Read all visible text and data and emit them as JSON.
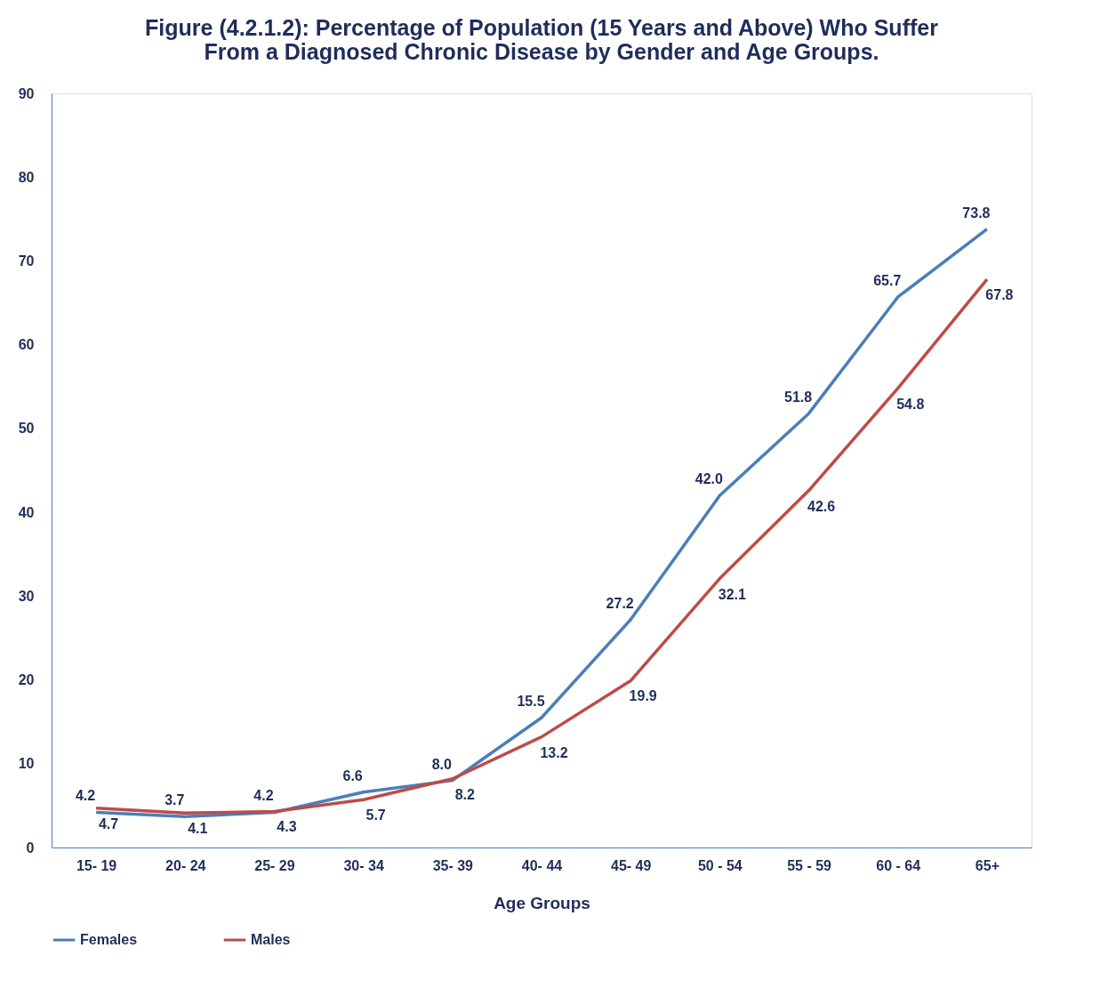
{
  "chart_data": {
    "type": "line",
    "title": [
      "Figure (4.2.1.2): Percentage of Population (15 Years and Above) Who Suffer",
      "From a Diagnosed Chronic Disease by Gender and Age Groups."
    ],
    "xlabel": "Age Groups",
    "categories": [
      "15- 19",
      "20- 24",
      "25- 29",
      "30- 34",
      "35- 39",
      "40- 44",
      "45- 49",
      "50 - 54",
      "55 - 59",
      "60 - 64",
      "65+"
    ],
    "series": [
      {
        "name": "Females",
        "color": "#4a7ebb",
        "values": [
          4.2,
          3.7,
          4.2,
          6.6,
          8.0,
          15.5,
          27.2,
          42.0,
          51.8,
          65.7,
          73.8
        ],
        "value_labels": [
          "4.2",
          "3.7",
          "4.2",
          "6.6",
          "8.0",
          "15.5",
          "27.2",
          "42.0",
          "51.8",
          "65.7",
          "73.8"
        ]
      },
      {
        "name": "Males",
        "color": "#be4b48",
        "values": [
          4.7,
          4.1,
          4.3,
          5.7,
          8.2,
          13.2,
          19.9,
          32.1,
          42.6,
          54.8,
          67.8
        ],
        "value_labels": [
          "4.7",
          "4.1",
          "4.3",
          "5.7",
          "8.2",
          "13.2",
          "19.9",
          "32.1",
          "42.6",
          "54.8",
          "67.8"
        ]
      }
    ],
    "ylim": [
      0,
      90
    ],
    "yticks": [
      0,
      10,
      20,
      30,
      40,
      50,
      60,
      70,
      80,
      90
    ],
    "grid": false,
    "legend": "bottom",
    "marker": "none",
    "line_style": "solid"
  }
}
